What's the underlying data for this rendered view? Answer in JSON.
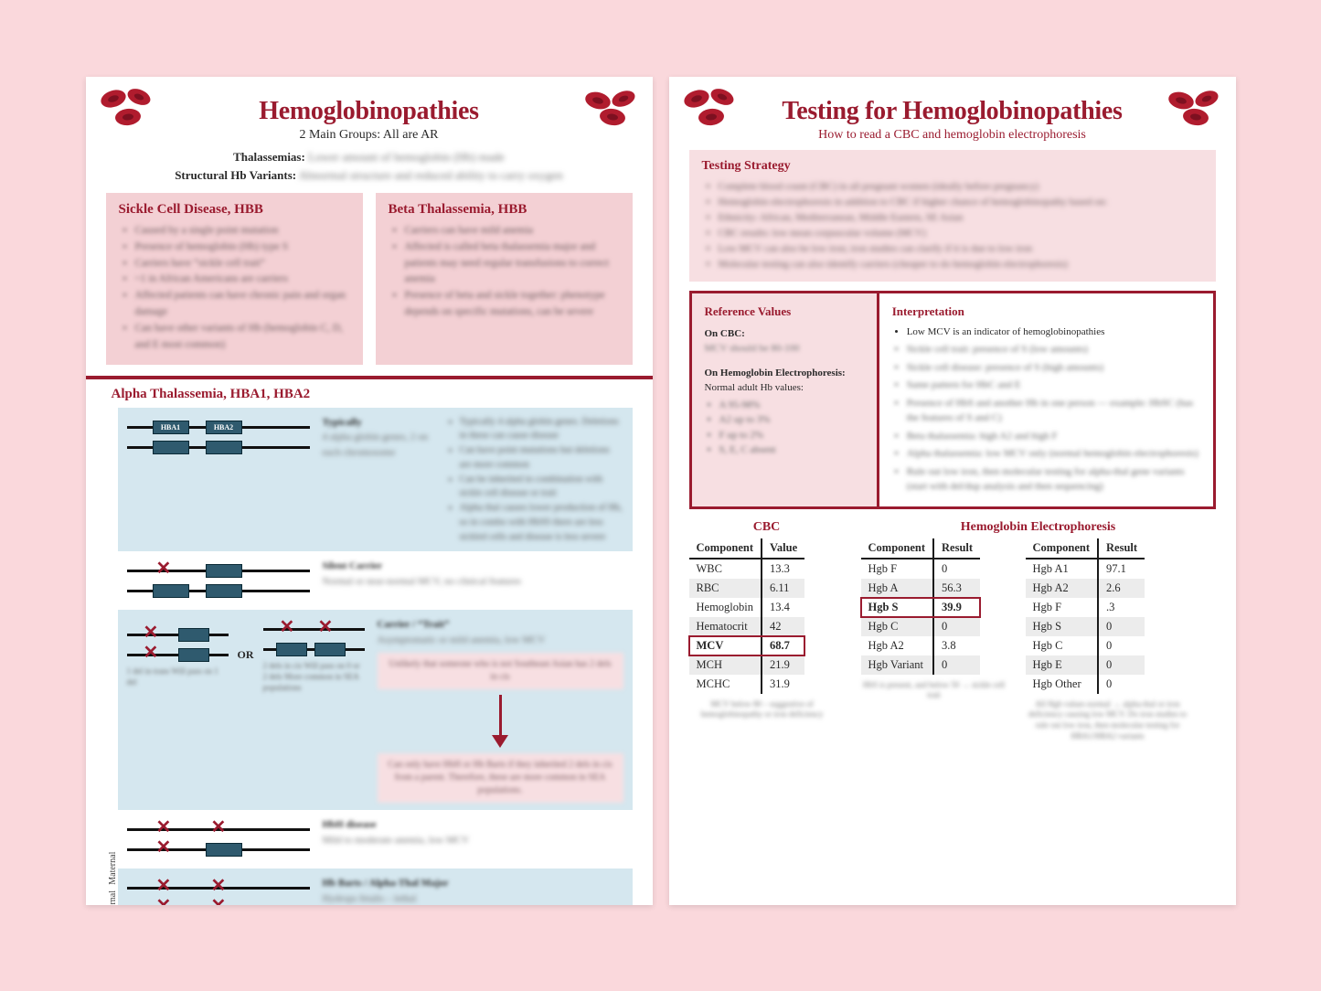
{
  "colors": {
    "maroon": "#9a1b2f",
    "pink_bg": "#fad8dc",
    "pink_box": "#f3d0d4",
    "steel": "#2f5a6e",
    "lightblue": "#d5e7ef",
    "row_alt": "#ececec"
  },
  "page1": {
    "title": "Hemoglobinopathies",
    "subtitle": "2 Main Groups: All are AR",
    "def1_label": "Thalassemias:",
    "def1_blur": "Lower amount of hemoglobin (Hb) made",
    "def2_label": "Structural Hb Variants:",
    "def2_blur": "Abnormal structure and reduced ability to carry oxygen",
    "card1": {
      "title": "Sickle Cell Disease, HBB",
      "items": [
        "Caused by a single point mutation",
        "Presence of hemoglobin (Hb) type S",
        "Carriers have “sickle cell trait”",
        "~1 in African Americans are carriers",
        "Affected patients can have chronic pain and organ damage",
        "Can have other variants of Hb (hemoglobin C, D, and E most common)"
      ]
    },
    "card2": {
      "title": "Beta Thalassemia, HBB",
      "items": [
        "Carriers can have mild anemia",
        "Affected is called beta thalassemia major and patients may need regular transfusions to correct anemia",
        "Presence of beta and sickle together: phenotype depends on specific mutations, can be severe"
      ]
    },
    "alpha_title": "Alpha Thalassemia, HBA1, HBA2",
    "vlabel_top": "Maternal",
    "vlabel_bottom": "Paternal",
    "gbox1": "HBA1",
    "gbox2": "HBA2",
    "row1": {
      "head": "Typically",
      "body": "4 alpha globin genes, 2 on each chromosome",
      "notes": [
        "Typically 4 alpha globin genes. Deletions in these can cause disease",
        "Can have point mutations but deletions are more common",
        "Can be inherited in combination with sickle cell disease or trait",
        "Alpha thal causes lower production of Hb, so in combo with HbSS there are less sickled cells and disease is less severe"
      ]
    },
    "row2": {
      "head": "Silent Carrier",
      "body": "Normal or near-normal MCV, no clinical features"
    },
    "row3": {
      "head": "Carrier / “Trait”",
      "body": "Asymptomatic or mild anemia, low MCV",
      "capL": "1 del in trans\\nWill pass on 1 del",
      "capR": "2 dels in cis\\nWill pass on 0 or 2 dels\\nMore common in SEA populations",
      "inset_top": "Unlikely that someone who is not Southeast Asian has 2 dels in cis",
      "inset_bottom": "Can only have HbH or Hb Barts if they inherited 2 dels in cis from a parent. Therefore, these are more common in SEA populations."
    },
    "row4": {
      "head": "HbH disease",
      "body": "Mild to moderate anemia, low MCV"
    },
    "row5": {
      "head": "Hb Barts / Alpha-Thal Major",
      "body": "Hydrops fetalis – lethal"
    },
    "or_label": "OR"
  },
  "page2": {
    "title": "Testing for Hemoglobinopathies",
    "subtitle": "How to read a CBC and hemoglobin electrophoresis",
    "strategy_title": "Testing Strategy",
    "strategy_items": [
      "Complete blood count (CBC) in all pregnant women (ideally before pregnancy)",
      "Hemoglobin electrophoresis in addition to CBC if higher chance of hemoglobinopathy based on:",
      "Ethnicity: African, Mediterranean, Middle Eastern, SE Asian",
      "CBC results: low mean corpuscular volume (MCV)",
      "Low MCV can also be low iron; iron studies can clarify if it is due to low iron",
      "Molecular testing can also identify carriers (cheaper to do hemoglobin electrophoresis)"
    ],
    "ref": {
      "title": "Reference Values",
      "cbc_label": "On CBC:",
      "cbc_blur": "MCV should be 80-100",
      "he_label": "On Hemoglobin Electrophoresis:",
      "he_sub": "Normal adult Hb values:",
      "he_items": [
        "A 95-98%",
        "A2 up to 3%",
        "F up to 2%",
        "S, E, C absent"
      ]
    },
    "interp": {
      "title": "Interpretation",
      "lead": "Low MCV is an indicator of hemoglobinopathies",
      "items": [
        "Sickle cell trait: presence of S (low amounts)",
        "Sickle cell disease: presence of S (high amounts)",
        "Same pattern for HbC and E",
        "Presence of HbS and another Hb in one person — example: HbSC (has the features of S and C)",
        "Beta thalassemia: high A2 and high F",
        "Alpha thalassemia: low MCV only (normal hemoglobin electrophoresis)",
        "Rule out low iron, then molecular testing for alpha-thal gene variants (start with del/dup analysis and then sequencing)"
      ]
    },
    "cbc": {
      "title": "CBC",
      "headers": [
        "Component",
        "Value"
      ],
      "rows": [
        {
          "c": "WBC",
          "v": "13.3",
          "alt": false,
          "hl": false
        },
        {
          "c": "RBC",
          "v": "6.11",
          "alt": true,
          "hl": false
        },
        {
          "c": "Hemoglobin",
          "v": "13.4",
          "alt": false,
          "hl": false
        },
        {
          "c": "Hematocrit",
          "v": "42",
          "alt": true,
          "hl": false
        },
        {
          "c": "MCV",
          "v": "68.7",
          "alt": false,
          "hl": true
        },
        {
          "c": "MCH",
          "v": "21.9",
          "alt": true,
          "hl": false
        },
        {
          "c": "MCHC",
          "v": "31.9",
          "alt": false,
          "hl": false
        }
      ],
      "note": "MCV below 80 – suggestive of hemoglobinopathy or iron deficiency"
    },
    "he": {
      "title": "Hemoglobin Electrophoresis",
      "headers": [
        "Component",
        "Result"
      ],
      "left_rows": [
        {
          "c": "Hgb F",
          "v": "0",
          "alt": false,
          "hl": false
        },
        {
          "c": "Hgb A",
          "v": "56.3",
          "alt": true,
          "hl": false
        },
        {
          "c": "Hgb S",
          "v": "39.9",
          "alt": false,
          "hl": true
        },
        {
          "c": "Hgb C",
          "v": "0",
          "alt": true,
          "hl": false
        },
        {
          "c": "Hgb A2",
          "v": "3.8",
          "alt": false,
          "hl": false
        },
        {
          "c": "Hgb Variant",
          "v": "0",
          "alt": true,
          "hl": false
        }
      ],
      "left_note": "HbS is present, and below 50 → sickle cell trait",
      "right_rows": [
        {
          "c": "Hgb A1",
          "v": "97.1",
          "alt": false,
          "hl": false
        },
        {
          "c": "Hgb A2",
          "v": "2.6",
          "alt": true,
          "hl": false
        },
        {
          "c": "Hgb F",
          "v": ".3",
          "alt": false,
          "hl": false
        },
        {
          "c": "Hgb S",
          "v": "0",
          "alt": true,
          "hl": false
        },
        {
          "c": "Hgb C",
          "v": "0",
          "alt": false,
          "hl": false
        },
        {
          "c": "Hgb E",
          "v": "0",
          "alt": true,
          "hl": false
        },
        {
          "c": "Hgb Other",
          "v": "0",
          "alt": false,
          "hl": false
        }
      ],
      "right_note": "All Hgb values normal → alpha-thal or iron deficiency causing low MCV. Do iron studies to rule out low iron, then molecular testing for HBA1/HBA2 variants"
    }
  }
}
